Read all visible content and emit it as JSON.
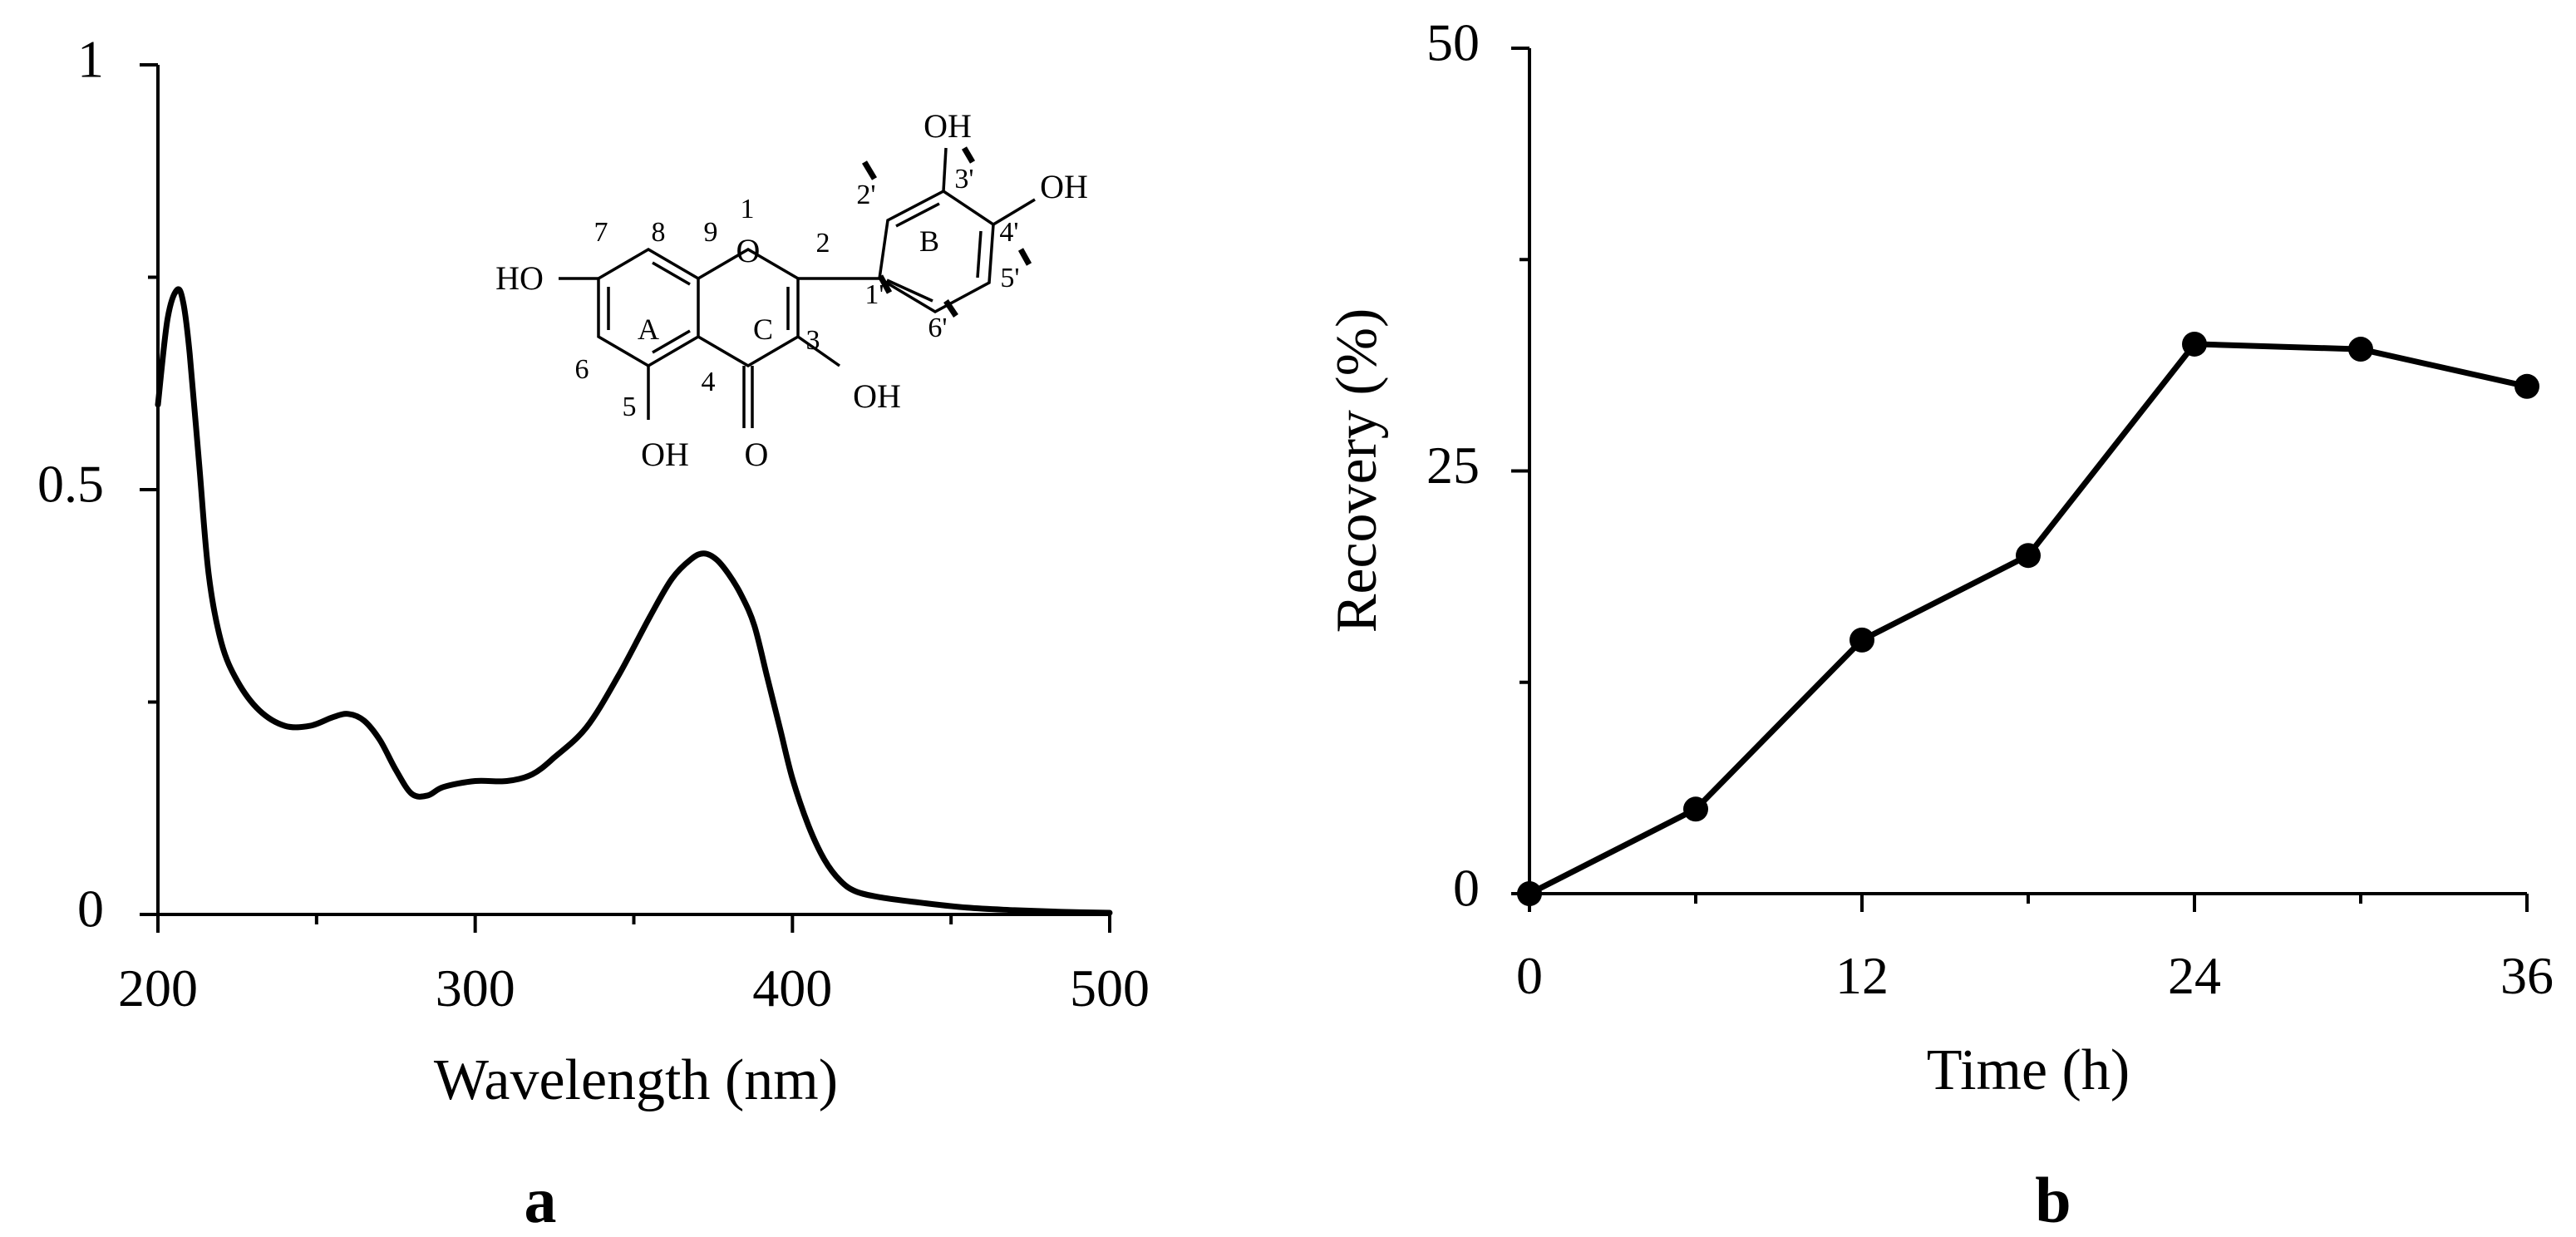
{
  "chart_data": [
    {
      "type": "line",
      "panel_label": "a",
      "xlabel": "Wavelength (nm)",
      "ylabel": "",
      "xlim": [
        200,
        500
      ],
      "ylim": [
        0,
        1
      ],
      "x_ticks": [
        "200",
        "300",
        "400",
        "500"
      ],
      "y_ticks": [
        "0",
        "0.5",
        "1"
      ],
      "grid": false,
      "legend": "none",
      "series": [
        {
          "x": [
            200,
            203,
            206,
            208,
            210,
            213,
            216,
            220,
            225,
            232,
            240,
            248,
            255,
            260,
            265,
            270,
            275,
            280,
            285,
            290,
            300,
            310,
            318,
            325,
            335,
            345,
            355,
            362,
            368,
            372,
            376,
            380,
            384,
            388,
            392,
            396,
            400,
            405,
            410,
            415,
            420,
            428,
            440,
            455,
            470,
            485,
            500
          ],
          "y": [
            0.6,
            0.7,
            0.735,
            0.72,
            0.66,
            0.53,
            0.4,
            0.32,
            0.275,
            0.24,
            0.222,
            0.222,
            0.232,
            0.236,
            0.228,
            0.205,
            0.17,
            0.142,
            0.14,
            0.15,
            0.157,
            0.157,
            0.165,
            0.185,
            0.22,
            0.28,
            0.35,
            0.395,
            0.418,
            0.425,
            0.418,
            0.4,
            0.375,
            0.34,
            0.28,
            0.22,
            0.16,
            0.105,
            0.065,
            0.04,
            0.027,
            0.02,
            0.014,
            0.008,
            0.005,
            0.003,
            0.002
          ]
        }
      ],
      "structure": {
        "labels": {
          "ho_left": "HO",
          "oh_bottom_5": "OH",
          "carbonyl_o": "O",
          "ring_o": "O",
          "oh_3": "OH",
          "oh_3prime": "OH",
          "oh_4prime": "OH"
        },
        "numbers": [
          "1",
          "2",
          "3",
          "4",
          "5",
          "6",
          "7",
          "8",
          "9",
          "1'",
          "2'",
          "3'",
          "4'",
          "5'",
          "6'"
        ],
        "rings": [
          "A",
          "C",
          "B"
        ]
      }
    },
    {
      "type": "line",
      "panel_label": "b",
      "xlabel": "Time (h)",
      "ylabel": "Recovery (%)",
      "xlim": [
        0,
        36
      ],
      "ylim": [
        0,
        50
      ],
      "x_ticks": [
        "0",
        "12",
        "24",
        "36"
      ],
      "y_ticks": [
        "0",
        "25",
        "50"
      ],
      "grid": false,
      "legend": "none",
      "series": [
        {
          "x": [
            0,
            6,
            12,
            18,
            24,
            30,
            36
          ],
          "y": [
            0,
            5,
            15,
            20,
            32.5,
            32.2,
            30.0
          ],
          "markers": true
        }
      ]
    }
  ]
}
